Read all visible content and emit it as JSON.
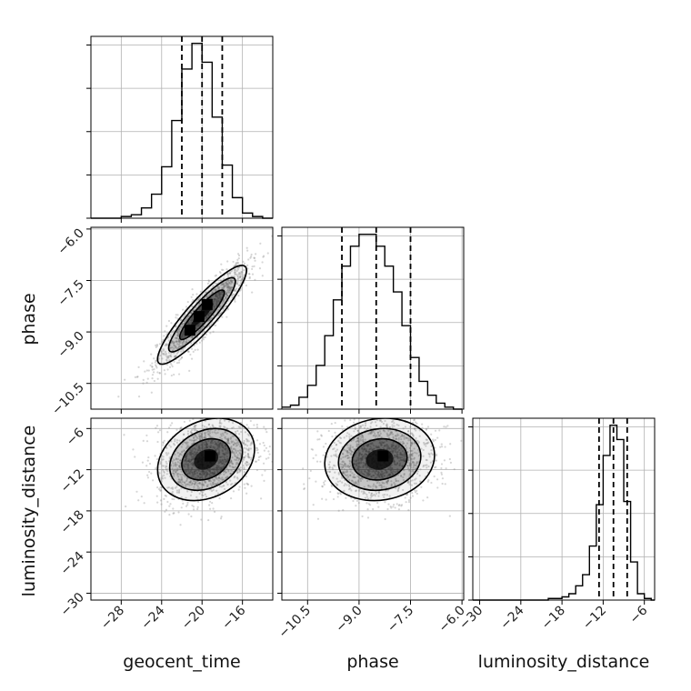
{
  "chart_data": {
    "type": "corner",
    "parameters": [
      "geocent_time",
      "phase",
      "luminosity_distance"
    ],
    "grid": true,
    "colors": {
      "line": "#000000",
      "grid": "#b0b0b0",
      "scatter": "#8a8a8a"
    },
    "axes": {
      "geocent_time": {
        "range": [
          -31,
          -13
        ],
        "ticks": [
          -28,
          -24,
          -20,
          -16
        ],
        "tick_labels": [
          "−28",
          "−24",
          "−20",
          "−16"
        ]
      },
      "phase": {
        "range": [
          -11.25,
          -5.95
        ],
        "ticks": [
          -10.5,
          -9.0,
          -7.5,
          -6.0
        ],
        "tick_labels": [
          "−10.5",
          "−9.0",
          "−7.5",
          "−6.0"
        ]
      },
      "luminosity_distance": {
        "range": [
          -31,
          -4.5
        ],
        "ticks": [
          -30,
          -24,
          -18,
          -12,
          -6
        ],
        "tick_labels": [
          "−30",
          "−24",
          "−18",
          "−12",
          "−6"
        ]
      }
    },
    "histograms": [
      {
        "parameter": "geocent_time",
        "bin_edges": [
          -31,
          -30,
          -29,
          -28,
          -27,
          -26,
          -25,
          -24,
          -23,
          -22,
          -21,
          -20,
          -19,
          -18,
          -17,
          -16,
          -15,
          -14,
          -13
        ],
        "counts": [
          0,
          0,
          0,
          1,
          2,
          6,
          14,
          30,
          57,
          87,
          102,
          91,
          59,
          31,
          12,
          3,
          1,
          0
        ],
        "quantiles": [
          -22.0,
          -20.0,
          -18.0
        ]
      },
      {
        "parameter": "phase",
        "bin_edges": [
          -11.25,
          -11.0,
          -10.75,
          -10.5,
          -10.25,
          -10.0,
          -9.75,
          -9.5,
          -9.25,
          -9.0,
          -8.75,
          -8.5,
          -8.25,
          -8.0,
          -7.75,
          -7.5,
          -7.25,
          -7.0,
          -6.75,
          -6.5,
          -6.25,
          -6.0
        ],
        "counts": [
          1,
          2,
          6,
          12,
          22,
          37,
          55,
          72,
          82,
          88,
          88,
          82,
          72,
          59,
          42,
          26,
          14,
          7,
          3,
          1,
          0
        ],
        "quantiles": [
          -9.5,
          -8.5,
          -7.5
        ]
      },
      {
        "parameter": "luminosity_distance",
        "bin_edges": [
          -31,
          -30,
          -29,
          -28,
          -27,
          -26,
          -25,
          -24,
          -23,
          -22,
          -21,
          -20,
          -19,
          -18,
          -17,
          -16,
          -15,
          -14,
          -13,
          -12,
          -11,
          -10,
          -9,
          -8,
          -7,
          -6,
          -5,
          -4.5
        ],
        "counts": [
          0,
          0,
          0,
          0,
          0,
          0,
          0,
          0,
          0,
          0,
          0,
          1,
          1,
          2,
          4,
          9,
          16,
          34,
          60,
          91,
          110,
          101,
          62,
          24,
          4,
          1,
          0
        ],
        "quantiles": [
          -12.6,
          -10.5,
          -8.5
        ]
      }
    ],
    "scatter_panels": [
      {
        "x": "geocent_time",
        "y": "phase",
        "mean": [
          -20,
          -8.5
        ],
        "sd": [
          2.2,
          0.72
        ],
        "correlation": 0.9,
        "peak_cells": [
          [
            -19.5,
            -8.2
          ],
          [
            -20.3,
            -8.55
          ],
          [
            -21.2,
            -8.95
          ]
        ]
      },
      {
        "x": "geocent_time",
        "y": "luminosity_distance",
        "mean": [
          -19.6,
          -10.5
        ],
        "sd": [
          2.4,
          3.0
        ],
        "correlation": 0.25,
        "peak_cells": [
          [
            -19.2,
            -10.0
          ]
        ]
      },
      {
        "x": "phase",
        "y": "luminosity_distance",
        "mean": [
          -8.4,
          -10.5
        ],
        "sd": [
          0.8,
          3.0
        ],
        "correlation": 0.1,
        "peak_cells": [
          [
            -8.3,
            -10.0
          ]
        ]
      }
    ]
  }
}
